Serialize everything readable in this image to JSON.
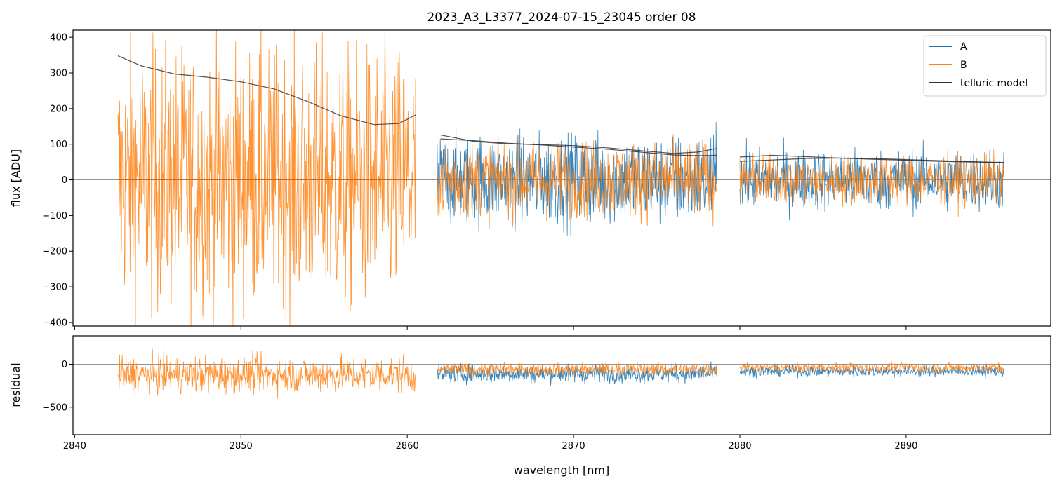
{
  "chart_data": [
    {
      "type": "line",
      "title": "2023_A3_L3377_2024-07-15_23045  order 08",
      "xlabel": "",
      "ylabel": "flux [ADU]",
      "xlim": [
        2839.9,
        2898.7
      ],
      "ylim": [
        -410,
        420
      ],
      "yticks": [
        400,
        300,
        200,
        100,
        0,
        -100,
        -200,
        -300,
        -400
      ],
      "xticks": [
        2840,
        2850,
        2860,
        2870,
        2880,
        2890
      ],
      "legend": {
        "placement": "top-right",
        "entries": [
          "A",
          "B",
          "telluric model"
        ]
      },
      "colors": {
        "A": "#1f77b4",
        "B": "#ff7f0e",
        "telluric model": "#333333"
      },
      "segments": [
        {
          "x": [
            2842.6,
            2860.5
          ],
          "a_noise": 0,
          "b_center": 0,
          "b_noise": 520,
          "a_center": 0
        },
        {
          "x": [
            2861.8,
            2878.6
          ],
          "a_center": 0,
          "a_noise": 180,
          "b_center": 0,
          "b_noise": 150
        },
        {
          "x": [
            2880.0,
            2895.9
          ],
          "a_center": 0,
          "a_noise": 120,
          "b_center": 0,
          "b_noise": 100
        }
      ],
      "series": [
        {
          "name": "telluric model",
          "segments": [
            {
              "x": [
                2842.6,
                2844.0,
                2846.0,
                2848.0,
                2850.0,
                2852.0,
                2854.0,
                2856.0,
                2858.0,
                2859.5,
                2860.5
              ],
              "y": [
                348,
                320,
                297,
                288,
                275,
                255,
                220,
                180,
                155,
                158,
                182
              ]
            },
            {
              "x": [
                2862.0,
                2864.0,
                2866.0,
                2868.0,
                2870.0,
                2872.0,
                2874.0,
                2876.0,
                2877.5,
                2878.6
              ],
              "y": [
                126,
                108,
                101,
                99,
                96,
                90,
                82,
                74,
                78,
                88
              ]
            },
            {
              "x": [
                2862.0,
                2864.0,
                2866.0,
                2868.0,
                2870.0,
                2872.0,
                2874.0,
                2876.0,
                2877.5,
                2878.6
              ],
              "y": [
                115,
                110,
                103,
                98,
                92,
                86,
                78,
                70,
                68,
                69
              ]
            },
            {
              "x": [
                2880.0,
                2882.0,
                2884.0,
                2886.0,
                2888.0,
                2890.0,
                2892.0,
                2894.0,
                2895.9
              ],
              "y": [
                64,
                69,
                65,
                61,
                58,
                55,
                52,
                50,
                49
              ]
            },
            {
              "x": [
                2880.0,
                2882.0,
                2884.0,
                2886.0,
                2888.0,
                2890.0,
                2892.0,
                2894.0,
                2895.9
              ],
              "y": [
                52,
                56,
                60,
                61,
                60,
                57,
                54,
                51,
                48
              ]
            }
          ]
        }
      ]
    },
    {
      "type": "line",
      "title": "",
      "xlabel": "wavelength [nm]",
      "ylabel": "residual",
      "xlim": [
        2839.9,
        2898.7
      ],
      "ylim": [
        -820,
        330
      ],
      "yticks": [
        0,
        -500
      ],
      "xticks": [
        2840,
        2850,
        2860,
        2870,
        2880,
        2890
      ],
      "segments": [
        {
          "x": [
            2842.6,
            2860.5
          ],
          "a_noise": 0,
          "b_center": -120,
          "b_noise": 300,
          "a_center": 0
        },
        {
          "x": [
            2861.8,
            2878.6
          ],
          "a_center": -110,
          "a_noise": 150,
          "b_center": -60,
          "b_noise": 110
        },
        {
          "x": [
            2880.0,
            2895.9
          ],
          "a_center": -80,
          "a_noise": 90,
          "b_center": -40,
          "b_noise": 80
        }
      ]
    }
  ]
}
